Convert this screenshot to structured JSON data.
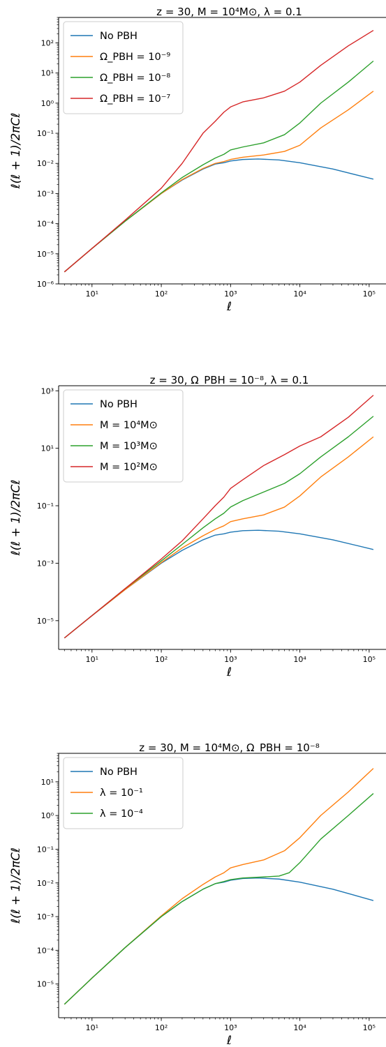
{
  "chart_data": [
    {
      "type": "line",
      "title": "z = 30,   M = 10⁴M⊙,   λ = 0.1",
      "xlabel": "ℓ",
      "ylabel": "ℓ(ℓ + 1)/2πCℓ",
      "xscale": "log",
      "yscale": "log",
      "xlim": [
        3.3,
        175000
      ],
      "ylim": [
        1e-06,
        700
      ],
      "xticks": [
        10,
        100,
        1000,
        10000,
        100000
      ],
      "xtick_labels": [
        "10¹",
        "10²",
        "10³",
        "10⁴",
        "10⁵"
      ],
      "yticks": [
        1e-06,
        1e-05,
        0.0001,
        0.001,
        0.01,
        0.1,
        1,
        10,
        100
      ],
      "ytick_labels": [
        "10⁻⁶",
        "10⁻⁵",
        "10⁻⁴",
        "10⁻³",
        "10⁻²",
        "10⁻¹",
        "10⁰",
        "10¹",
        "10²"
      ],
      "legend_position": "top-left",
      "grid": false,
      "series": [
        {
          "name": "No PBH",
          "color": "#1f77b4",
          "points": [
            [
              4,
              2.5e-06
            ],
            [
              10,
              1.5e-05
            ],
            [
              30,
              0.00012
            ],
            [
              100,
              0.001
            ],
            [
              200,
              0.0028
            ],
            [
              400,
              0.0065
            ],
            [
              600,
              0.0095
            ],
            [
              800,
              0.0105
            ],
            [
              1000,
              0.012
            ],
            [
              1500,
              0.0135
            ],
            [
              2500,
              0.014
            ],
            [
              5000,
              0.013
            ],
            [
              10000,
              0.0105
            ],
            [
              30000,
              0.0065
            ],
            [
              115000,
              0.003
            ]
          ]
        },
        {
          "name": "Ω_PBH = 10⁻⁹",
          "color": "#ff7f0e",
          "points": [
            [
              4,
              2.5e-06
            ],
            [
              10,
              1.5e-05
            ],
            [
              30,
              0.00012
            ],
            [
              100,
              0.001
            ],
            [
              200,
              0.0029
            ],
            [
              400,
              0.0068
            ],
            [
              600,
              0.01
            ],
            [
              800,
              0.0115
            ],
            [
              1000,
              0.0135
            ],
            [
              1500,
              0.016
            ],
            [
              3000,
              0.019
            ],
            [
              6000,
              0.025
            ],
            [
              10000,
              0.04
            ],
            [
              20000,
              0.15
            ],
            [
              50000,
              0.6
            ],
            [
              115000,
              2.5
            ]
          ]
        },
        {
          "name": "Ω_PBH = 10⁻⁸",
          "color": "#2ca02c",
          "points": [
            [
              4,
              2.5e-06
            ],
            [
              10,
              1.5e-05
            ],
            [
              30,
              0.00012
            ],
            [
              100,
              0.00105
            ],
            [
              200,
              0.0034
            ],
            [
              400,
              0.009
            ],
            [
              600,
              0.015
            ],
            [
              800,
              0.02
            ],
            [
              1000,
              0.028
            ],
            [
              1500,
              0.035
            ],
            [
              3000,
              0.048
            ],
            [
              6000,
              0.09
            ],
            [
              10000,
              0.22
            ],
            [
              20000,
              1
            ],
            [
              50000,
              5
            ],
            [
              115000,
              25
            ]
          ]
        },
        {
          "name": "Ω_PBH = 10⁻⁷",
          "color": "#d62728",
          "points": [
            [
              4,
              2.5e-06
            ],
            [
              10,
              1.5e-05
            ],
            [
              30,
              0.00013
            ],
            [
              100,
              0.0015
            ],
            [
              200,
              0.01
            ],
            [
              400,
              0.1
            ],
            [
              600,
              0.25
            ],
            [
              800,
              0.5
            ],
            [
              1000,
              0.75
            ],
            [
              1500,
              1.1
            ],
            [
              3000,
              1.5
            ],
            [
              6000,
              2.5
            ],
            [
              10000,
              5
            ],
            [
              20000,
              18
            ],
            [
              50000,
              80
            ],
            [
              115000,
              260
            ]
          ]
        }
      ]
    },
    {
      "type": "line",
      "title": "z = 30,   Ω_PBH = 10⁻⁸,   λ = 0.1",
      "xlabel": "ℓ",
      "ylabel": "ℓ(ℓ + 1)/2πCℓ",
      "xscale": "log",
      "yscale": "log",
      "xlim": [
        3.3,
        175000
      ],
      "ylim": [
        1e-06,
        1500
      ],
      "xticks": [
        10,
        100,
        1000,
        10000,
        100000
      ],
      "xtick_labels": [
        "10¹",
        "10²",
        "10³",
        "10⁴",
        "10⁵"
      ],
      "yticks": [
        1e-05,
        0.001,
        0.1,
        10,
        1000
      ],
      "ytick_labels": [
        "10⁻⁵",
        "10⁻³",
        "10⁻¹",
        "10¹",
        "10³"
      ],
      "legend_position": "top-left",
      "grid": false,
      "series": [
        {
          "name": "No PBH",
          "color": "#1f77b4",
          "points": [
            [
              4,
              2.5e-06
            ],
            [
              10,
              1.5e-05
            ],
            [
              30,
              0.00012
            ],
            [
              100,
              0.001
            ],
            [
              200,
              0.0028
            ],
            [
              400,
              0.0065
            ],
            [
              600,
              0.0095
            ],
            [
              800,
              0.0105
            ],
            [
              1000,
              0.012
            ],
            [
              1500,
              0.0135
            ],
            [
              2500,
              0.014
            ],
            [
              5000,
              0.013
            ],
            [
              10000,
              0.0105
            ],
            [
              30000,
              0.0065
            ],
            [
              115000,
              0.003
            ]
          ]
        },
        {
          "name": "M = 10⁴M⊙",
          "color": "#ff7f0e",
          "points": [
            [
              4,
              2.5e-06
            ],
            [
              10,
              1.5e-05
            ],
            [
              30,
              0.00012
            ],
            [
              100,
              0.00105
            ],
            [
              200,
              0.0034
            ],
            [
              400,
              0.009
            ],
            [
              600,
              0.015
            ],
            [
              800,
              0.02
            ],
            [
              1000,
              0.028
            ],
            [
              1500,
              0.035
            ],
            [
              3000,
              0.048
            ],
            [
              6000,
              0.09
            ],
            [
              10000,
              0.22
            ],
            [
              20000,
              1
            ],
            [
              50000,
              5
            ],
            [
              115000,
              25
            ]
          ]
        },
        {
          "name": "M = 10³M⊙",
          "color": "#2ca02c",
          "points": [
            [
              4,
              2.5e-06
            ],
            [
              10,
              1.5e-05
            ],
            [
              30,
              0.00013
            ],
            [
              100,
              0.0012
            ],
            [
              200,
              0.0045
            ],
            [
              400,
              0.017
            ],
            [
              600,
              0.035
            ],
            [
              800,
              0.055
            ],
            [
              1000,
              0.09
            ],
            [
              1500,
              0.15
            ],
            [
              3000,
              0.3
            ],
            [
              6000,
              0.6
            ],
            [
              10000,
              1.3
            ],
            [
              20000,
              5
            ],
            [
              50000,
              25
            ],
            [
              115000,
              130
            ]
          ]
        },
        {
          "name": "M = 10²M⊙",
          "color": "#d62728",
          "points": [
            [
              4,
              2.5e-06
            ],
            [
              10,
              1.5e-05
            ],
            [
              30,
              0.00013
            ],
            [
              100,
              0.0014
            ],
            [
              200,
              0.006
            ],
            [
              400,
              0.035
            ],
            [
              600,
              0.1
            ],
            [
              800,
              0.2
            ],
            [
              1000,
              0.4
            ],
            [
              1500,
              0.8
            ],
            [
              3000,
              2.5
            ],
            [
              6000,
              6
            ],
            [
              10000,
              12
            ],
            [
              20000,
              25
            ],
            [
              50000,
              120
            ],
            [
              115000,
              700
            ]
          ]
        }
      ]
    },
    {
      "type": "line",
      "title": "z = 30,   M = 10⁴M⊙,   Ω_PBH = 10⁻⁸",
      "xlabel": "ℓ",
      "ylabel": "ℓ(ℓ + 1)/2πCℓ",
      "xscale": "log",
      "yscale": "log",
      "xlim": [
        3.3,
        175000
      ],
      "ylim": [
        1e-06,
        70
      ],
      "xticks": [
        10,
        100,
        1000,
        10000,
        100000
      ],
      "xtick_labels": [
        "10¹",
        "10²",
        "10³",
        "10⁴",
        "10⁵"
      ],
      "yticks": [
        1e-05,
        0.0001,
        0.001,
        0.01,
        0.1,
        1,
        10
      ],
      "ytick_labels": [
        "10⁻⁵",
        "10⁻⁴",
        "10⁻³",
        "10⁻²",
        "10⁻¹",
        "10⁰",
        "10¹"
      ],
      "legend_position": "top-left",
      "grid": false,
      "series": [
        {
          "name": "No PBH",
          "color": "#1f77b4",
          "points": [
            [
              4,
              2.5e-06
            ],
            [
              10,
              1.5e-05
            ],
            [
              30,
              0.00012
            ],
            [
              100,
              0.001
            ],
            [
              200,
              0.0028
            ],
            [
              400,
              0.0065
            ],
            [
              600,
              0.0095
            ],
            [
              800,
              0.0105
            ],
            [
              1000,
              0.012
            ],
            [
              1500,
              0.0135
            ],
            [
              2500,
              0.014
            ],
            [
              5000,
              0.013
            ],
            [
              10000,
              0.0105
            ],
            [
              30000,
              0.0065
            ],
            [
              115000,
              0.003
            ]
          ]
        },
        {
          "name": "λ = 10⁻¹",
          "color": "#ff7f0e",
          "points": [
            [
              4,
              2.5e-06
            ],
            [
              10,
              1.5e-05
            ],
            [
              30,
              0.00012
            ],
            [
              100,
              0.00105
            ],
            [
              200,
              0.0034
            ],
            [
              400,
              0.009
            ],
            [
              600,
              0.015
            ],
            [
              800,
              0.02
            ],
            [
              1000,
              0.028
            ],
            [
              1500,
              0.035
            ],
            [
              3000,
              0.048
            ],
            [
              6000,
              0.09
            ],
            [
              10000,
              0.22
            ],
            [
              20000,
              1
            ],
            [
              50000,
              5
            ],
            [
              115000,
              25
            ]
          ]
        },
        {
          "name": "λ = 10⁻⁴",
          "color": "#2ca02c",
          "points": [
            [
              4,
              2.5e-06
            ],
            [
              10,
              1.5e-05
            ],
            [
              30,
              0.00012
            ],
            [
              100,
              0.001
            ],
            [
              200,
              0.0028
            ],
            [
              400,
              0.0065
            ],
            [
              600,
              0.0095
            ],
            [
              800,
              0.011
            ],
            [
              1000,
              0.0125
            ],
            [
              1500,
              0.014
            ],
            [
              3000,
              0.015
            ],
            [
              5000,
              0.016
            ],
            [
              7000,
              0.02
            ],
            [
              10000,
              0.04
            ],
            [
              20000,
              0.2
            ],
            [
              50000,
              1
            ],
            [
              115000,
              4.5
            ]
          ]
        }
      ]
    }
  ]
}
